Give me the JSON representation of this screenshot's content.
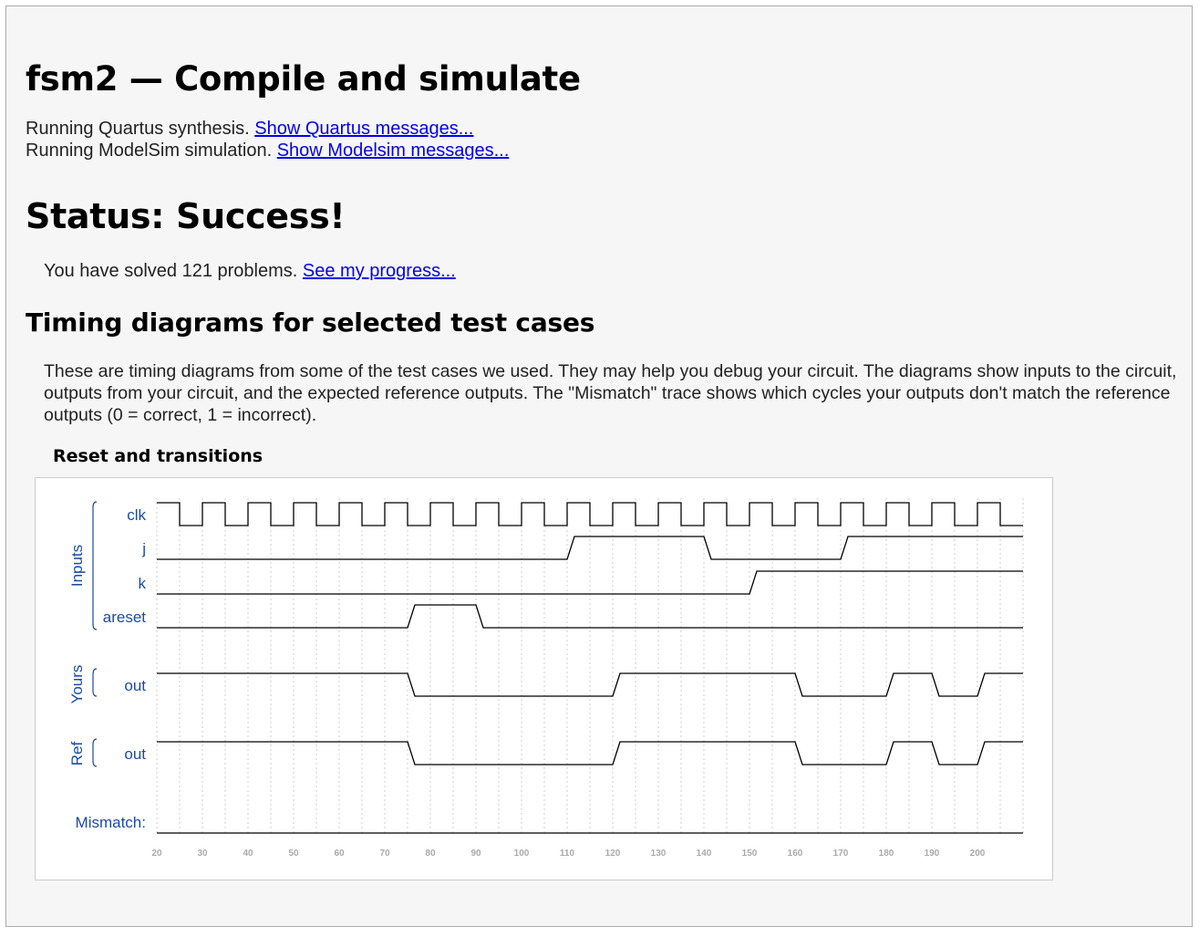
{
  "page": {
    "title": "fsm2 — Compile and simulate"
  },
  "build": {
    "quartus_text": "Running Quartus synthesis.",
    "quartus_link": "Show Quartus messages...",
    "modelsim_text": "Running ModelSim simulation.",
    "modelsim_link": "Show Modelsim messages..."
  },
  "status": {
    "heading": "Status: Success!",
    "solved_text": "You have solved 121 problems.",
    "progress_link": "See my progress..."
  },
  "timing": {
    "heading": "Timing diagrams for selected test cases",
    "description": "These are timing diagrams from some of the test cases we used. They may help you debug your circuit. The diagrams show inputs to the circuit, outputs from your circuit, and the expected reference outputs. The \"Mismatch\" trace shows which cycles your outputs don't match the reference outputs (0 = correct, 1 = incorrect).",
    "diagram_title": "Reset and transitions"
  },
  "colors": {
    "label_blue": "#1a4aa8",
    "trace": "#000000",
    "grid": "#cfcfcf",
    "tick": "#aaaaaa"
  },
  "chart_data": {
    "type": "line",
    "x_ticks": [
      20,
      30,
      40,
      50,
      60,
      70,
      80,
      90,
      100,
      110,
      120,
      130,
      140,
      150,
      160,
      170,
      180,
      190,
      200
    ],
    "x_range": [
      20,
      210
    ],
    "groups": [
      {
        "name": "Inputs",
        "signals": [
          "clk",
          "j",
          "k",
          "areset"
        ]
      },
      {
        "name": "Yours",
        "signals": [
          "out"
        ]
      },
      {
        "name": "Ref",
        "signals": [
          "out"
        ]
      }
    ],
    "mismatch_label": "Mismatch:",
    "signals": [
      {
        "id": "clk",
        "label": "clk",
        "clock": true,
        "period": 10,
        "high_first_phase": [
          20,
          25
        ],
        "start": 20,
        "end": 210
      },
      {
        "id": "j",
        "label": "j",
        "transitions": [
          [
            20,
            0
          ],
          [
            110,
            1
          ],
          [
            140,
            0
          ],
          [
            170,
            1
          ]
        ],
        "end": 210
      },
      {
        "id": "k",
        "label": "k",
        "transitions": [
          [
            20,
            0
          ],
          [
            150,
            1
          ]
        ],
        "end": 210
      },
      {
        "id": "areset",
        "label": "areset",
        "transitions": [
          [
            20,
            0
          ],
          [
            75,
            1
          ],
          [
            90,
            0
          ]
        ],
        "end": 210
      },
      {
        "id": "yours_out",
        "label": "out",
        "transitions": [
          [
            20,
            1
          ],
          [
            75,
            0
          ],
          [
            120,
            1
          ],
          [
            160,
            0
          ],
          [
            180,
            1
          ],
          [
            190,
            0
          ],
          [
            200,
            1
          ]
        ],
        "end": 210
      },
      {
        "id": "ref_out",
        "label": "out",
        "transitions": [
          [
            20,
            1
          ],
          [
            75,
            0
          ],
          [
            120,
            1
          ],
          [
            160,
            0
          ],
          [
            180,
            1
          ],
          [
            190,
            0
          ],
          [
            200,
            1
          ]
        ],
        "end": 210
      },
      {
        "id": "mismatch",
        "label": "Mismatch:",
        "transitions": [
          [
            20,
            0
          ]
        ],
        "end": 210
      }
    ]
  }
}
